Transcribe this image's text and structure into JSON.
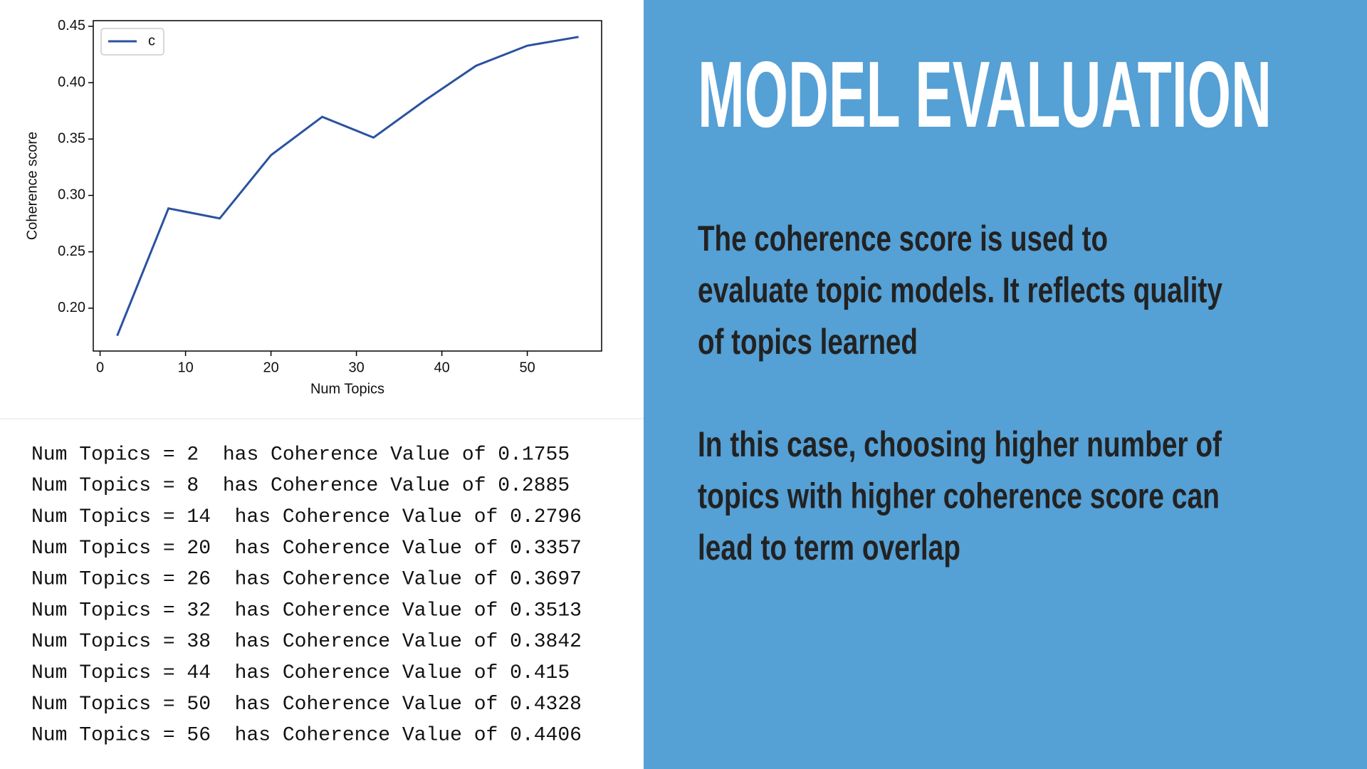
{
  "chart_data": {
    "type": "line",
    "x": [
      2,
      8,
      14,
      20,
      26,
      32,
      38,
      44,
      50,
      56
    ],
    "series": [
      {
        "name": "c",
        "color": "#2a52a0",
        "values": [
          0.1755,
          0.2885,
          0.2796,
          0.3357,
          0.3697,
          0.3513,
          0.3842,
          0.415,
          0.4328,
          0.4406
        ]
      }
    ],
    "xlabel": "Num Topics",
    "ylabel": "Coherence score",
    "xlim": [
      -0.8,
      58.7
    ],
    "ylim": [
      0.162,
      0.455
    ],
    "xticks": [
      0,
      10,
      20,
      30,
      40,
      50
    ],
    "yticks": [
      {
        "value": 0.2,
        "label": "0.20"
      },
      0.25,
      {
        "value": 0.3,
        "label": "0.30"
      },
      0.35,
      {
        "value": 0.4,
        "label": "0.40"
      },
      0.45
    ],
    "legend": "upper left",
    "grid": false
  },
  "console": {
    "lines": [
      "Num Topics = 2  has Coherence Value of 0.1755",
      "Num Topics = 8  has Coherence Value of 0.2885",
      "Num Topics = 14  has Coherence Value of 0.2796",
      "Num Topics = 20  has Coherence Value of 0.3357",
      "Num Topics = 26  has Coherence Value of 0.3697",
      "Num Topics = 32  has Coherence Value of 0.3513",
      "Num Topics = 38  has Coherence Value of 0.3842",
      "Num Topics = 44  has Coherence Value of 0.415",
      "Num Topics = 50  has Coherence Value of 0.4328",
      "Num Topics = 56  has Coherence Value of 0.4406"
    ]
  },
  "slide": {
    "title": "MODEL EVALUATION",
    "paragraphs": [
      [
        "The coherence score is used to",
        "evaluate topic models. It reflects quality",
        "of topics learned"
      ],
      [
        "In this case, choosing higher number of",
        "topics with higher coherence score can",
        "lead to term overlap"
      ]
    ]
  }
}
